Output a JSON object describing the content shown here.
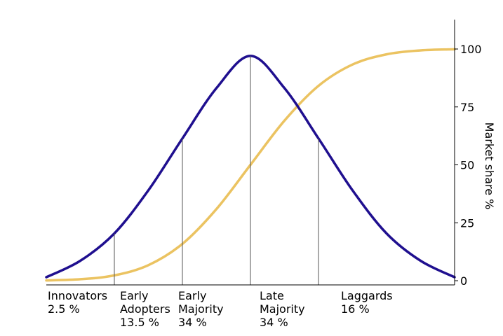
{
  "chart_data": {
    "type": "line",
    "ylabel": "Market share %",
    "ylim": [
      0,
      100
    ],
    "y_ticks": [
      0,
      25,
      50,
      75,
      100
    ],
    "grid": false,
    "x_domain": [
      -3,
      3
    ],
    "x": [
      -3.0,
      -2.5,
      -2.0,
      -1.5,
      -1.0,
      -0.5,
      0.0,
      0.5,
      1.0,
      1.5,
      2.0,
      2.5,
      3.0
    ],
    "series": [
      {
        "color": "#1f0f8f",
        "values": [
          1.5,
          8.6,
          20.4,
          39.0,
          61.4,
          83.1,
          97.0,
          83.1,
          61.4,
          39.0,
          20.4,
          8.6,
          1.5
        ]
      },
      {
        "color": "#ebc361",
        "values": [
          0.13,
          0.62,
          2.3,
          6.7,
          15.9,
          30.9,
          50.0,
          69.1,
          84.1,
          93.3,
          97.7,
          99.4,
          99.87
        ]
      }
    ],
    "dividers_x": [
      -2,
      -1,
      0,
      1
    ],
    "segments": [
      {
        "name": "Innovators",
        "share": "2.5 %"
      },
      {
        "name": "Early Adopters",
        "share": "13.5 %"
      },
      {
        "name": "Early Majority",
        "share": "34 %"
      },
      {
        "name": "Late Majority",
        "share": "34 %"
      },
      {
        "name": "Laggards",
        "share": "16 %"
      }
    ],
    "segment_lines": [
      [
        "Innovators",
        "2.5 %"
      ],
      [
        "Early",
        "Adopters",
        "13.5 %"
      ],
      [
        "Early",
        "Majority",
        "34 %"
      ],
      [
        "Late",
        "Majority",
        "34 %"
      ],
      [
        "Laggards",
        "16 %"
      ]
    ]
  }
}
